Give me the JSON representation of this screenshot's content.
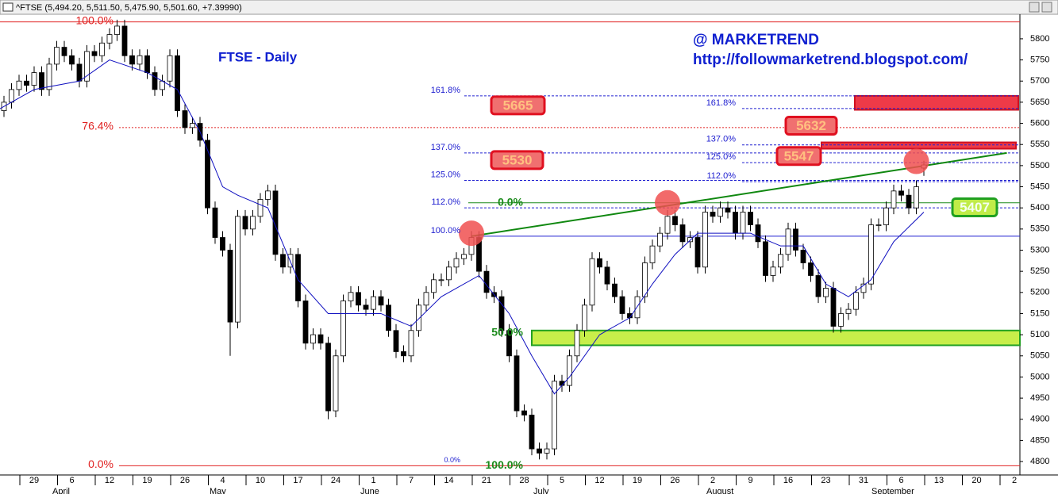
{
  "header": {
    "title": "^FTSE (5,494.20, 5,511.50, 5,475.90, 5,501.60, +7.39990)"
  },
  "chart_data": {
    "type": "candlestick",
    "title": "FTSE - Daily",
    "watermark": "@ MARKETREND",
    "url": "http://followmarketrend.blogspot.com/",
    "x_labels": [
      "29",
      "6",
      "12",
      "19",
      "26",
      "4",
      "10",
      "17",
      "24",
      "1",
      "7",
      "14",
      "21",
      "28",
      "5",
      "12",
      "19",
      "26",
      "2",
      "9",
      "16",
      "23",
      "31",
      "6",
      "13",
      "20",
      "2"
    ],
    "month_labels": [
      "April",
      "May",
      "June",
      "July",
      "August",
      "September"
    ],
    "up_color": "#ffffff",
    "down_color": "#000000",
    "open": [
      5600,
      5630,
      5650,
      5680,
      5700,
      5690,
      5720,
      5680,
      5740,
      5780,
      5760,
      5740,
      5700,
      5770,
      5760,
      5790,
      5810,
      5830,
      5760,
      5740,
      5760,
      5720,
      5680,
      5700,
      5760,
      5630,
      5590,
      5600,
      5560,
      5400,
      5330,
      5300,
      5130,
      5380,
      5350,
      5380,
      5420,
      5440,
      5290,
      5260,
      5290,
      5180,
      5080,
      5100,
      5080,
      4920,
      5050,
      5180,
      5200,
      5170,
      5160,
      5190,
      5170,
      5110,
      5060,
      5050,
      5110,
      5170,
      5200,
      5230,
      5230,
      5260,
      5280,
      5290,
      5330,
      5250,
      5200,
      5190,
      5110,
      5050,
      4920,
      4910,
      4830,
      4820,
      4830,
      4990,
      4980,
      5050,
      5110,
      5170,
      5280,
      5260,
      5220,
      5190,
      5150,
      5140,
      5190,
      5270,
      5310,
      5340,
      5380,
      5360,
      5320,
      5330,
      5260,
      5390,
      5380,
      5400,
      5390,
      5340,
      5390,
      5360,
      5320,
      5240,
      5260,
      5290,
      5350,
      5300,
      5270,
      5240,
      5190,
      5210,
      5120,
      5150,
      5160,
      5200,
      5220,
      5360,
      5360,
      5400,
      5440,
      5430,
      5400,
      5494.2
    ],
    "high": [
      5645,
      5665,
      5695,
      5715,
      5715,
      5735,
      5735,
      5755,
      5795,
      5795,
      5775,
      5755,
      5785,
      5785,
      5805,
      5825,
      5845,
      5845,
      5775,
      5775,
      5775,
      5735,
      5715,
      5775,
      5775,
      5645,
      5615,
      5615,
      5575,
      5415,
      5345,
      5315,
      5395,
      5395,
      5395,
      5435,
      5455,
      5455,
      5305,
      5305,
      5305,
      5195,
      5115,
      5115,
      5095,
      5065,
      5195,
      5215,
      5215,
      5185,
      5205,
      5205,
      5185,
      5125,
      5075,
      5125,
      5185,
      5215,
      5245,
      5245,
      5275,
      5295,
      5305,
      5345,
      5345,
      5265,
      5215,
      5205,
      5125,
      5065,
      4935,
      4925,
      4845,
      4845,
      5005,
      5005,
      5065,
      5125,
      5185,
      5295,
      5295,
      5275,
      5235,
      5205,
      5165,
      5205,
      5285,
      5325,
      5355,
      5395,
      5395,
      5375,
      5345,
      5345,
      5405,
      5405,
      5415,
      5415,
      5405,
      5405,
      5405,
      5375,
      5335,
      5275,
      5305,
      5365,
      5365,
      5315,
      5285,
      5255,
      5225,
      5225,
      5165,
      5175,
      5215,
      5235,
      5375,
      5375,
      5415,
      5455,
      5455,
      5445,
      5465,
      5511.5
    ],
    "low": [
      5585,
      5615,
      5635,
      5665,
      5675,
      5675,
      5665,
      5665,
      5725,
      5745,
      5725,
      5685,
      5685,
      5745,
      5745,
      5775,
      5795,
      5745,
      5725,
      5725,
      5705,
      5665,
      5665,
      5685,
      5615,
      5575,
      5575,
      5545,
      5385,
      5315,
      5285,
      5050,
      5115,
      5335,
      5335,
      5365,
      5405,
      5275,
      5245,
      5245,
      5165,
      5065,
      5065,
      5065,
      4900,
      4905,
      5035,
      5165,
      5155,
      5145,
      5145,
      5155,
      5095,
      5045,
      5035,
      5035,
      5095,
      5155,
      5185,
      5215,
      5215,
      5245,
      5265,
      5275,
      5235,
      5185,
      5175,
      5095,
      5035,
      4905,
      4895,
      4815,
      4805,
      4805,
      4815,
      4965,
      4965,
      5035,
      5095,
      5155,
      5245,
      5205,
      5175,
      5135,
      5125,
      5125,
      5175,
      5255,
      5295,
      5325,
      5345,
      5305,
      5305,
      5245,
      5245,
      5365,
      5365,
      5375,
      5325,
      5325,
      5345,
      5305,
      5225,
      5225,
      5245,
      5275,
      5285,
      5255,
      5225,
      5175,
      5175,
      5105,
      5105,
      5135,
      5145,
      5185,
      5205,
      5345,
      5345,
      5385,
      5415,
      5385,
      5385,
      5475.9
    ],
    "close": [
      5630,
      5650,
      5680,
      5700,
      5690,
      5720,
      5680,
      5740,
      5780,
      5760,
      5740,
      5700,
      5770,
      5760,
      5790,
      5810,
      5830,
      5760,
      5740,
      5760,
      5720,
      5680,
      5700,
      5760,
      5630,
      5590,
      5600,
      5560,
      5400,
      5330,
      5300,
      5130,
      5380,
      5350,
      5380,
      5420,
      5440,
      5290,
      5260,
      5290,
      5180,
      5080,
      5100,
      5080,
      4920,
      5050,
      5180,
      5200,
      5170,
      5160,
      5190,
      5170,
      5110,
      5060,
      5050,
      5110,
      5170,
      5200,
      5230,
      5230,
      5260,
      5280,
      5290,
      5330,
      5250,
      5200,
      5190,
      5110,
      5050,
      4920,
      4910,
      4830,
      4820,
      4830,
      4990,
      4980,
      5050,
      5110,
      5170,
      5280,
      5260,
      5220,
      5190,
      5150,
      5140,
      5190,
      5270,
      5310,
      5340,
      5380,
      5360,
      5320,
      5330,
      5260,
      5390,
      5380,
      5400,
      5390,
      5340,
      5390,
      5360,
      5320,
      5240,
      5260,
      5290,
      5350,
      5300,
      5270,
      5240,
      5190,
      5210,
      5120,
      5150,
      5160,
      5200,
      5220,
      5360,
      5360,
      5400,
      5440,
      5430,
      5400,
      5450,
      5501.6
    ],
    "moving_average": {
      "color": "#1010c0",
      "x": [
        0,
        5,
        11,
        15,
        20,
        24,
        27,
        30,
        32,
        36,
        40,
        44,
        47,
        51,
        55,
        59,
        64,
        68,
        71,
        74,
        76,
        80,
        84,
        87,
        90,
        93,
        96,
        100,
        104,
        107,
        110,
        113,
        116,
        119,
        123
      ],
      "values": [
        5630,
        5680,
        5700,
        5750,
        5720,
        5680,
        5580,
        5450,
        5430,
        5400,
        5230,
        5150,
        5150,
        5150,
        5120,
        5190,
        5240,
        5150,
        5050,
        4960,
        5000,
        5100,
        5140,
        5220,
        5290,
        5340,
        5340,
        5340,
        5310,
        5310,
        5220,
        5190,
        5230,
        5320,
        5390
      ]
    },
    "ylim": [
      4772,
      5858
    ],
    "yticks": [
      4800,
      4850,
      4900,
      4950,
      5000,
      5050,
      5100,
      5150,
      5200,
      5250,
      5300,
      5350,
      5400,
      5450,
      5500,
      5550,
      5600,
      5650,
      5700,
      5750,
      5800
    ],
    "level_groups": [
      {
        "color": "#e02020",
        "levels": [
          {
            "label": "100.0%",
            "value": 5840,
            "style": "solid"
          },
          {
            "label": "76.4%",
            "value": 5590,
            "style": "dotted"
          },
          {
            "label": "0.0%",
            "value": 4790,
            "style": "solid"
          }
        ]
      },
      {
        "color": "#2020d0",
        "levels": [
          {
            "label": "161.8%",
            "value": 5665,
            "style": "dashed"
          },
          {
            "label": "137.0%",
            "value": 5530,
            "style": "dashed"
          },
          {
            "label": "125.0%",
            "value": 5465,
            "style": "dashed"
          },
          {
            "label": "112.0%",
            "value": 5400,
            "style": "dashed"
          },
          {
            "label": "100.0%",
            "value": 5333,
            "style": "solid"
          },
          {
            "label": "0.0%",
            "value": 4790,
            "style": "none"
          }
        ]
      },
      {
        "color": "#2020d0",
        "levels": [
          {
            "label": "161.8%",
            "value": 5635,
            "style": "dashed"
          },
          {
            "label": "137.0%",
            "value": 5549,
            "style": "dashed"
          },
          {
            "label": "125.0%",
            "value": 5507,
            "style": "dashed"
          },
          {
            "label": "112.0%",
            "value": 5462,
            "style": "dashed"
          }
        ]
      },
      {
        "color": "#1a8a1a",
        "levels": [
          {
            "label": "0.0%",
            "value": 5412,
            "style": "solid"
          },
          {
            "label": "50.0%",
            "value": 5104,
            "style": "none"
          },
          {
            "label": "100.0%",
            "value": 4790,
            "style": "none"
          }
        ]
      }
    ],
    "price_boxes": [
      {
        "value": 5665,
        "color": "#f07070"
      },
      {
        "value": 5530,
        "color": "#f07070"
      },
      {
        "value": 5632,
        "color": "#f07070"
      },
      {
        "value": 5547,
        "color": "#f07070"
      },
      {
        "value": 5407,
        "color": "#c0ec48"
      }
    ],
    "zones": [
      {
        "from": 5632,
        "to": 5665,
        "color": "#ee3a48"
      },
      {
        "from": 5540,
        "to": 5555,
        "color": "#ee3a48"
      },
      {
        "from": 5075,
        "to": 5110,
        "color": "#c8ee4a"
      }
    ],
    "trendline": {
      "color": "#108810",
      "x": [
        63,
        134
      ],
      "values": [
        5333,
        5530
      ]
    },
    "circles": {
      "color": "#f05050",
      "x": [
        63,
        89,
        122
      ],
      "values": [
        5340,
        5412,
        5510
      ]
    }
  }
}
